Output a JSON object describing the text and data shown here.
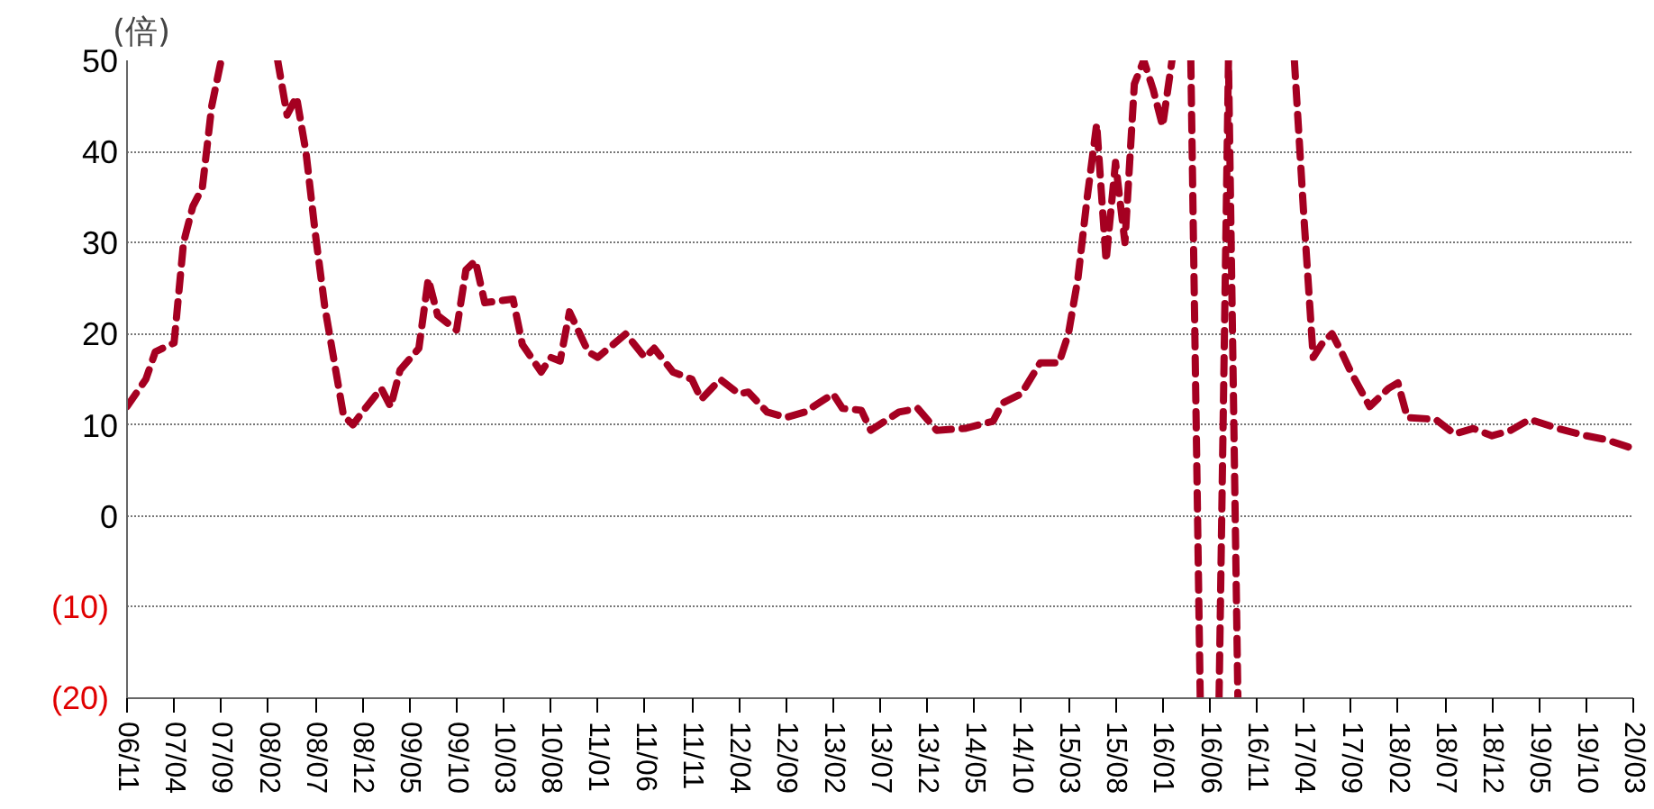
{
  "chart_data": {
    "type": "line",
    "ylabel": "(倍)",
    "x": [
      "2006-11",
      "2007-01",
      "2007-02",
      "2007-04",
      "2007-05",
      "2007-06",
      "2007-07",
      "2007-08",
      "2007-09",
      "2007-10",
      "2008-03",
      "2008-04",
      "2008-05",
      "2008-06",
      "2008-07",
      "2008-08",
      "2008-09",
      "2008-10",
      "2008-11",
      "2008-12",
      "2009-02",
      "2009-03",
      "2009-04",
      "2009-06",
      "2009-07",
      "2009-08",
      "2009-10",
      "2009-11",
      "2009-12",
      "2010-01",
      "2010-04",
      "2010-05",
      "2010-07",
      "2010-08",
      "2010-09",
      "2010-10",
      "2010-12",
      "2011-01",
      "2011-04",
      "2011-06",
      "2011-07",
      "2011-09",
      "2011-11",
      "2011-12",
      "2012-02",
      "2012-04",
      "2012-05",
      "2012-07",
      "2012-09",
      "2012-11",
      "2013-02",
      "2013-03",
      "2013-05",
      "2013-06",
      "2013-09",
      "2013-11",
      "2014-01",
      "2014-04",
      "2014-07",
      "2014-08",
      "2014-10",
      "2014-12",
      "2015-02",
      "2015-03",
      "2015-04",
      "2015-05",
      "2015-06",
      "2015-07",
      "2015-08",
      "2015-09",
      "2015-10",
      "2015-11",
      "2015-12",
      "2016-01",
      "2016-02",
      "2016-03",
      "2016-04",
      "2016-05",
      "2016-06",
      "2016-07",
      "2016-08",
      "2016-09",
      "2016-10",
      "2017-03",
      "2017-04",
      "2017-05",
      "2017-06",
      "2017-07",
      "2017-08",
      "2017-09",
      "2017-11",
      "2018-01",
      "2018-02",
      "2018-03",
      "2018-06",
      "2018-08",
      "2018-10",
      "2018-12",
      "2019-02",
      "2019-04",
      "2019-07",
      "2019-10",
      "2019-12",
      "2020-03"
    ],
    "series": [
      {
        "color": "#a50021",
        "values": [
          12,
          15,
          18,
          19,
          30,
          34,
          36,
          45,
          50,
          null,
          50,
          44,
          46,
          40,
          31,
          23,
          17,
          11,
          10,
          11.4,
          14,
          12,
          16,
          18.4,
          26,
          22,
          20.4,
          27,
          28,
          23.4,
          23.8,
          18.8,
          15.8,
          17.4,
          17,
          22.4,
          18,
          17.4,
          20,
          17.4,
          18.4,
          15.8,
          15,
          12.8,
          15,
          13.4,
          13.6,
          11.4,
          10.8,
          11.4,
          13.4,
          11.8,
          11.6,
          9.4,
          11.4,
          11.8,
          9.4,
          9.6,
          10.4,
          12.4,
          13.4,
          16.8,
          16.8,
          20,
          26,
          35,
          43,
          28,
          38.8,
          30,
          47.4,
          50,
          46.8,
          42.8,
          50,
          null,
          50,
          -20,
          null,
          -20,
          50,
          -20,
          null,
          50,
          33,
          17.4,
          19,
          20,
          18,
          15.8,
          12,
          14,
          14.6,
          10.8,
          10.6,
          9,
          9.6,
          8.8,
          9.4,
          10.6,
          9.6,
          8.8,
          8.4,
          7.4
        ]
      }
    ],
    "xlim": [
      "2006-11",
      "2020-03"
    ],
    "xticks": [
      {
        "value": "2006-11",
        "label": "06/11"
      },
      {
        "value": "2007-04",
        "label": "07/04"
      },
      {
        "value": "2007-09",
        "label": "07/09"
      },
      {
        "value": "2008-02",
        "label": "08/02"
      },
      {
        "value": "2008-07",
        "label": "08/07"
      },
      {
        "value": "2008-12",
        "label": "08/12"
      },
      {
        "value": "2009-05",
        "label": "09/05"
      },
      {
        "value": "2009-10",
        "label": "09/10"
      },
      {
        "value": "2010-03",
        "label": "10/03"
      },
      {
        "value": "2010-08",
        "label": "10/08"
      },
      {
        "value": "2011-01",
        "label": "11/01"
      },
      {
        "value": "2011-06",
        "label": "11/06"
      },
      {
        "value": "2011-11",
        "label": "11/11"
      },
      {
        "value": "2012-04",
        "label": "12/04"
      },
      {
        "value": "2012-09",
        "label": "12/09"
      },
      {
        "value": "2013-02",
        "label": "13/02"
      },
      {
        "value": "2013-07",
        "label": "13/07"
      },
      {
        "value": "2013-12",
        "label": "13/12"
      },
      {
        "value": "2014-05",
        "label": "14/05"
      },
      {
        "value": "2014-10",
        "label": "14/10"
      },
      {
        "value": "2015-03",
        "label": "15/03"
      },
      {
        "value": "2015-08",
        "label": "15/08"
      },
      {
        "value": "2016-01",
        "label": "16/01"
      },
      {
        "value": "2016-06",
        "label": "16/06"
      },
      {
        "value": "2016-11",
        "label": "16/11"
      },
      {
        "value": "2017-04",
        "label": "17/04"
      },
      {
        "value": "2017-09",
        "label": "17/09"
      },
      {
        "value": "2018-02",
        "label": "18/02"
      },
      {
        "value": "2018-07",
        "label": "18/07"
      },
      {
        "value": "2018-12",
        "label": "18/12"
      },
      {
        "value": "2019-05",
        "label": "19/05"
      },
      {
        "value": "2019-10",
        "label": "19/10"
      },
      {
        "value": "2020-03",
        "label": "20/03"
      }
    ],
    "ylim": [
      -20,
      50
    ],
    "yticks": [
      {
        "value": -20,
        "label": "(20)"
      },
      {
        "value": -10,
        "label": "(10)"
      },
      0,
      10,
      20,
      30,
      40,
      50
    ],
    "grid": "y",
    "line_style": "dashed",
    "marker": "none"
  }
}
